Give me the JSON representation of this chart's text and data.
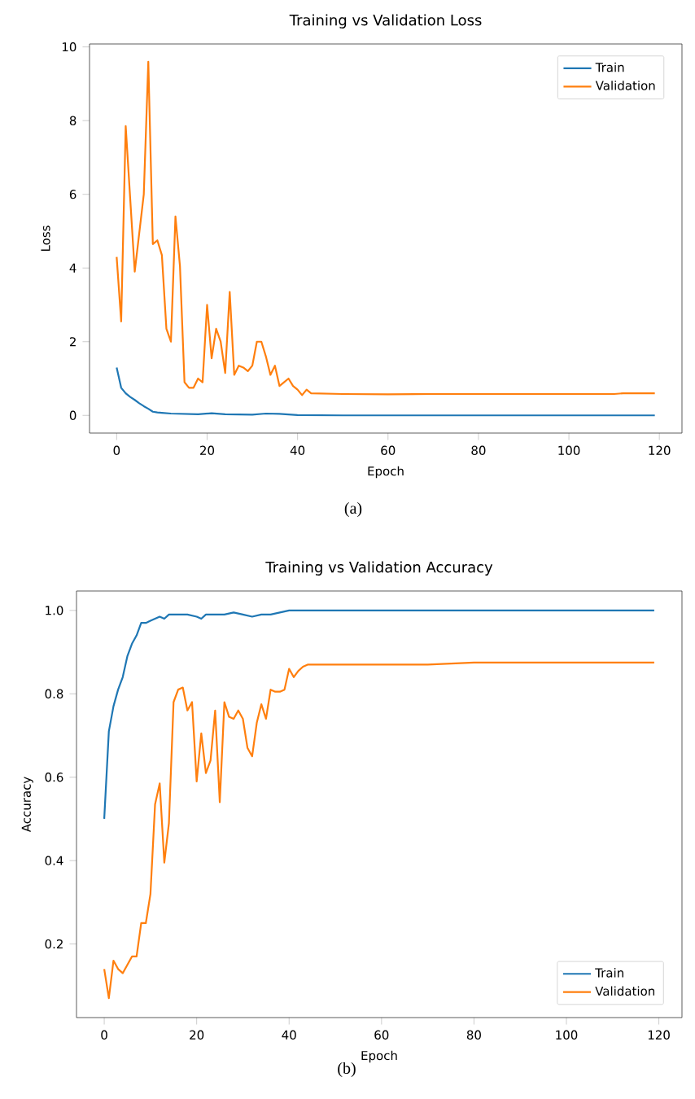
{
  "chart_data": [
    {
      "type": "line",
      "title": "Training vs Validation Loss",
      "xlabel": "Epoch",
      "ylabel": "Loss",
      "xlim": [
        -6,
        125
      ],
      "ylim": [
        -0.48,
        10.08
      ],
      "xticks": [
        0,
        20,
        40,
        60,
        80,
        100,
        120
      ],
      "yticks": [
        0,
        2,
        4,
        6,
        8,
        10
      ],
      "legend": "top right",
      "series": [
        {
          "name": "Train",
          "color": "#1f77b4",
          "x": [
            0,
            1,
            2,
            3,
            4,
            5,
            6,
            7,
            8,
            9,
            10,
            12,
            15,
            18,
            21,
            24,
            30,
            33,
            36,
            40,
            50,
            60,
            80,
            100,
            119
          ],
          "values": [
            1.3,
            0.75,
            0.6,
            0.5,
            0.42,
            0.33,
            0.25,
            0.18,
            0.1,
            0.08,
            0.07,
            0.05,
            0.04,
            0.03,
            0.06,
            0.03,
            0.02,
            0.05,
            0.04,
            0.01,
            0.0,
            0.0,
            0.0,
            0.0,
            0.0
          ]
        },
        {
          "name": "Validation",
          "color": "#ff7f0e",
          "x": [
            0,
            1,
            2,
            4,
            6,
            7,
            8,
            9,
            10,
            11,
            12,
            13,
            14,
            15,
            16,
            17,
            18,
            19,
            20,
            21,
            22,
            23,
            24,
            25,
            26,
            27,
            28,
            29,
            30,
            31,
            32,
            33,
            34,
            35,
            36,
            37,
            38,
            39,
            40,
            41,
            42,
            43,
            50,
            60,
            70,
            80,
            90,
            100,
            110,
            112,
            119
          ],
          "values": [
            4.3,
            2.55,
            7.85,
            3.9,
            6.0,
            9.6,
            4.65,
            4.75,
            4.35,
            2.35,
            2.0,
            5.4,
            4.05,
            0.9,
            0.75,
            0.75,
            1.0,
            0.9,
            3.0,
            1.55,
            2.35,
            2.0,
            1.15,
            3.35,
            1.1,
            1.35,
            1.3,
            1.2,
            1.35,
            2.0,
            2.0,
            1.6,
            1.1,
            1.35,
            0.8,
            0.9,
            1.0,
            0.8,
            0.7,
            0.55,
            0.7,
            0.6,
            0.58,
            0.57,
            0.58,
            0.58,
            0.58,
            0.58,
            0.58,
            0.6,
            0.6
          ]
        }
      ],
      "annotations": [
        "(a)"
      ]
    },
    {
      "type": "line",
      "title": "Training vs Validation Accuracy",
      "xlabel": "Epoch",
      "ylabel": "Accuracy",
      "xlim": [
        -6,
        125
      ],
      "ylim": [
        0.0235,
        1.0465
      ],
      "xticks": [
        0,
        20,
        40,
        60,
        80,
        100,
        120
      ],
      "yticks": [
        0.2,
        0.4,
        0.6,
        0.8,
        {
          "value": 1,
          "label": "1.0"
        }
      ],
      "legend": "bottom right",
      "series": [
        {
          "name": "Train",
          "color": "#1f77b4",
          "x": [
            0,
            1,
            2,
            3,
            4,
            5,
            6,
            7,
            8,
            9,
            10,
            11,
            12,
            13,
            14,
            16,
            18,
            20,
            21,
            22,
            24,
            26,
            28,
            30,
            32,
            34,
            36,
            38,
            40,
            60,
            80,
            100,
            119
          ],
          "values": [
            0.5,
            0.71,
            0.77,
            0.81,
            0.84,
            0.89,
            0.92,
            0.94,
            0.97,
            0.97,
            0.975,
            0.98,
            0.985,
            0.98,
            0.99,
            0.99,
            0.99,
            0.985,
            0.98,
            0.99,
            0.99,
            0.99,
            0.995,
            0.99,
            0.985,
            0.99,
            0.99,
            0.995,
            1.0,
            1.0,
            1.0,
            1.0,
            1.0
          ]
        },
        {
          "name": "Validation",
          "color": "#ff7f0e",
          "x": [
            0,
            1,
            2,
            3,
            4,
            5,
            6,
            7,
            8,
            9,
            10,
            11,
            12,
            13,
            14,
            15,
            16,
            17,
            18,
            19,
            20,
            21,
            22,
            23,
            24,
            25,
            26,
            27,
            28,
            29,
            30,
            31,
            32,
            33,
            34,
            35,
            36,
            37,
            38,
            39,
            40,
            41,
            42,
            43,
            44,
            50,
            60,
            70,
            80,
            90,
            100,
            110,
            119
          ],
          "values": [
            0.14,
            0.07,
            0.16,
            0.14,
            0.13,
            0.15,
            0.17,
            0.17,
            0.25,
            0.25,
            0.32,
            0.535,
            0.585,
            0.395,
            0.49,
            0.78,
            0.81,
            0.815,
            0.76,
            0.78,
            0.59,
            0.705,
            0.61,
            0.64,
            0.76,
            0.54,
            0.78,
            0.745,
            0.74,
            0.76,
            0.74,
            0.67,
            0.65,
            0.73,
            0.775,
            0.74,
            0.81,
            0.805,
            0.805,
            0.81,
            0.86,
            0.84,
            0.855,
            0.865,
            0.87,
            0.87,
            0.87,
            0.87,
            0.875,
            0.875,
            0.875,
            0.875,
            0.875
          ]
        }
      ],
      "annotations": [
        "(b)"
      ]
    }
  ]
}
